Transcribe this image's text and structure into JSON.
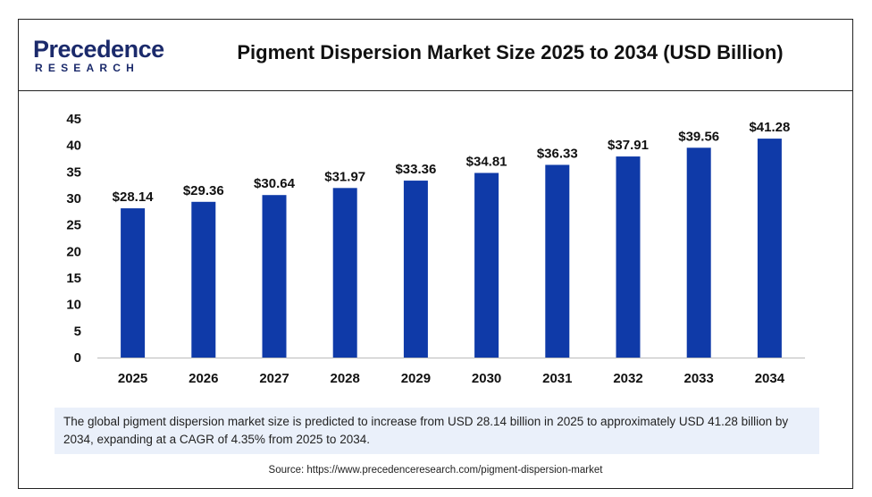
{
  "brand": {
    "line1": "Precedence",
    "line2": "RESEARCH",
    "color": "#1b2a6b"
  },
  "header": {
    "title": "Pigment Dispersion Market Size 2025 to 2034 (USD Billion)"
  },
  "chart_data": {
    "type": "bar",
    "categories": [
      "2025",
      "2026",
      "2027",
      "2028",
      "2029",
      "2030",
      "2031",
      "2032",
      "2033",
      "2034"
    ],
    "values": [
      28.14,
      29.36,
      30.64,
      31.97,
      33.36,
      34.81,
      36.33,
      37.91,
      39.56,
      41.28
    ],
    "data_labels": [
      "$28.14",
      "$29.36",
      "$30.64",
      "$31.97",
      "$33.36",
      "$34.81",
      "$36.33",
      "$37.91",
      "$39.56",
      "$41.28"
    ],
    "ylim": [
      0,
      45
    ],
    "yticks": [
      0,
      5,
      10,
      15,
      20,
      25,
      30,
      35,
      40,
      45
    ],
    "bar_color": "#0f3aa8",
    "grid": false,
    "title": "",
    "xlabel": "",
    "ylabel": ""
  },
  "footer": {
    "description": "The global pigment dispersion market size is predicted to increase from USD 28.14 billion in 2025 to approximately USD 41.28 billion by 2034, expanding at a CAGR of 4.35% from 2025 to 2034.",
    "source": "Source: https://www.precedenceresearch.com/pigment-dispersion-market"
  }
}
